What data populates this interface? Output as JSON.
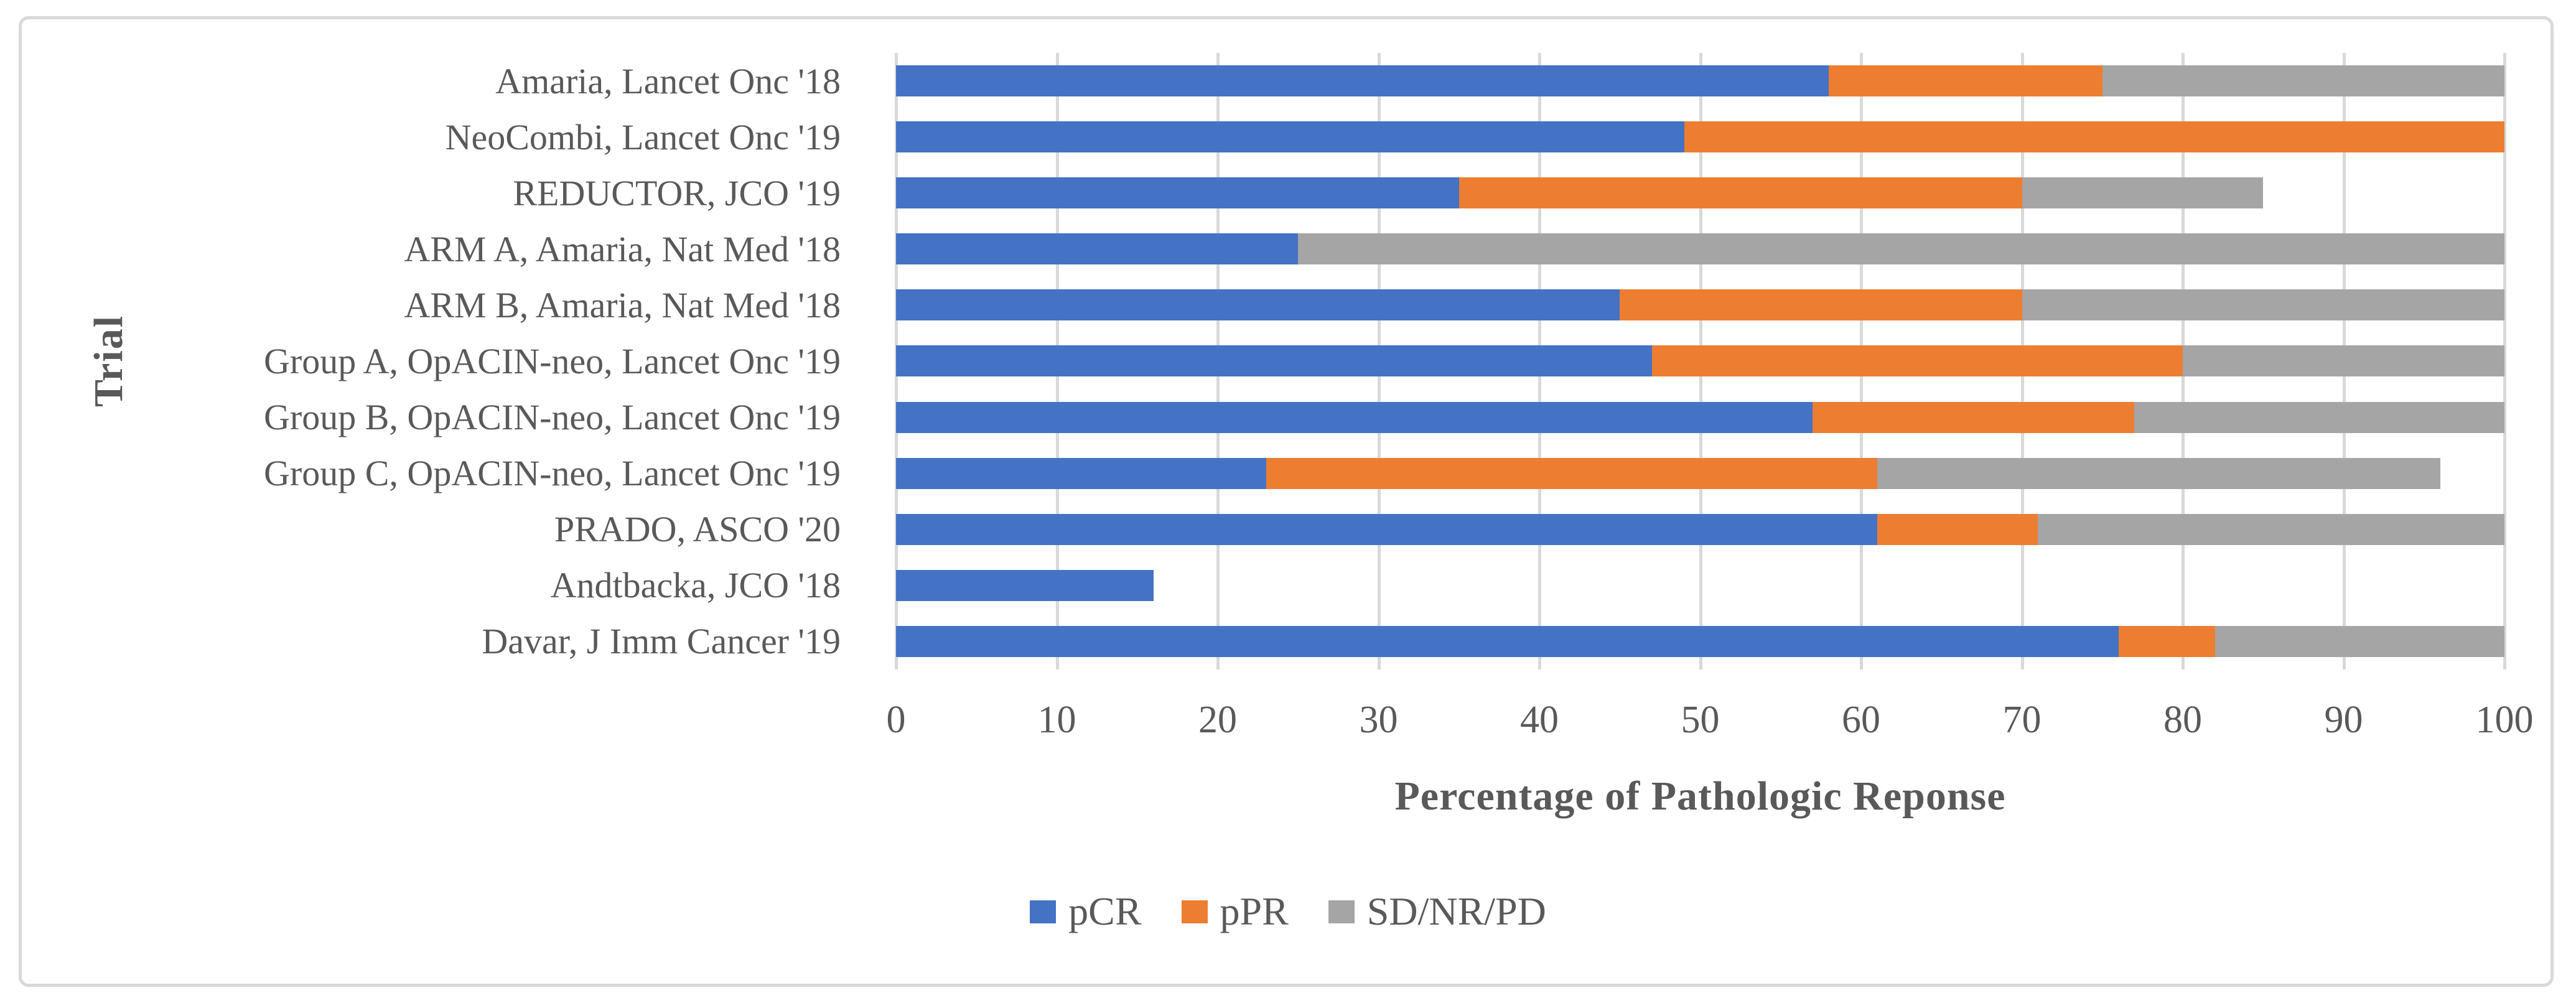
{
  "figure": {
    "background_color": "#FFFFFF",
    "border_color": "#D9D9D9",
    "grid_color": "#D9D9D9",
    "text_color": "#595959"
  },
  "chart_data": {
    "type": "bar",
    "orientation": "horizontal",
    "stacked": true,
    "xlabel": "Percentage of Pathologic Reponse",
    "ylabel": "Trial",
    "xlim": [
      0,
      100
    ],
    "x_ticks": [
      0,
      10,
      20,
      30,
      40,
      50,
      60,
      70,
      80,
      90,
      100
    ],
    "grid": true,
    "legend_position": "bottom",
    "categories": [
      "Amaria, Lancet Onc '18",
      "NeoCombi, Lancet Onc '19",
      "REDUCTOR, JCO '19",
      "ARM A, Amaria, Nat Med '18",
      "ARM B, Amaria, Nat Med '18",
      "Group A, OpACIN-neo, Lancet Onc '19",
      "Group B, OpACIN-neo, Lancet Onc '19",
      "Group C, OpACIN-neo, Lancet Onc '19",
      "PRADO, ASCO '20",
      "Andtbacka, JCO '18",
      "Davar, J Imm Cancer '19"
    ],
    "series": [
      {
        "name": "pCR",
        "color": "#4472C4",
        "values": [
          58,
          49,
          35,
          25,
          45,
          47,
          57,
          23,
          61,
          16,
          76
        ]
      },
      {
        "name": "pPR",
        "color": "#ED7D31",
        "values": [
          17,
          51,
          35,
          0,
          25,
          33,
          20,
          38,
          10,
          0,
          6
        ]
      },
      {
        "name": "SD/NR/PD",
        "color": "#A5A5A5",
        "values": [
          25,
          0,
          15,
          75,
          30,
          20,
          23,
          35,
          29,
          0,
          18
        ]
      }
    ]
  }
}
